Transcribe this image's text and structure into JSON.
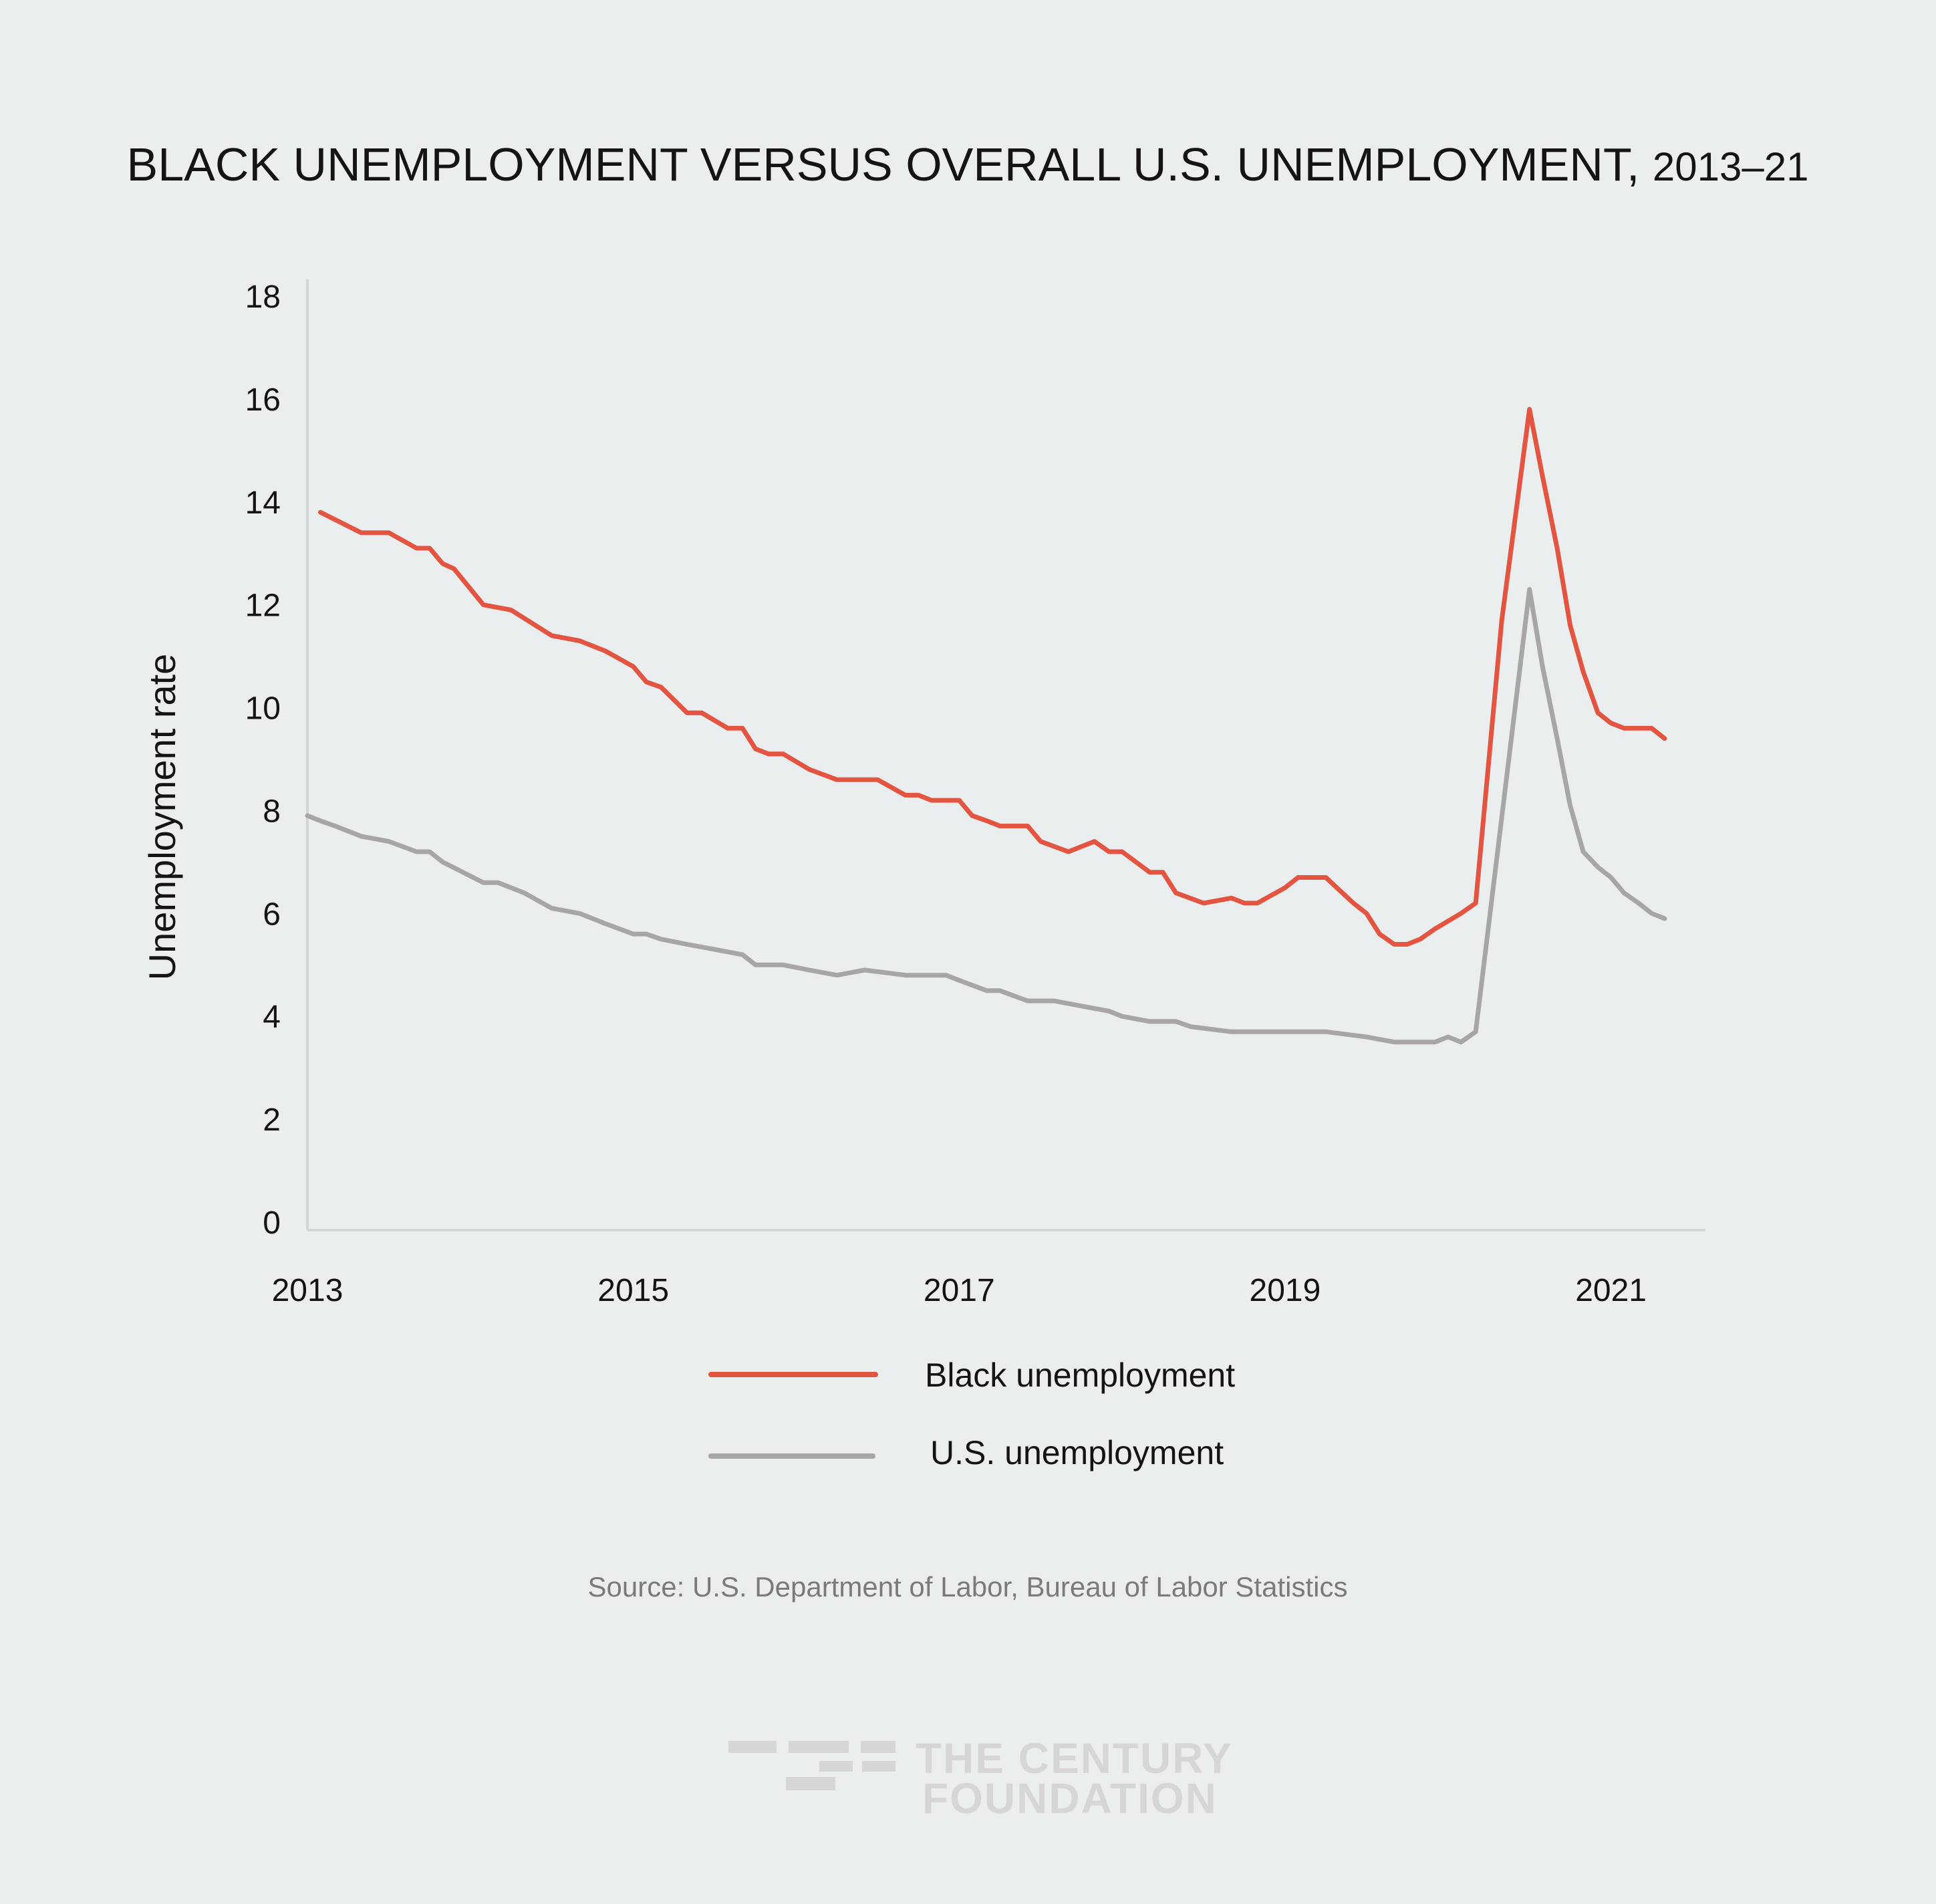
{
  "chart_data": {
    "type": "line",
    "title": "BLACK UNEMPLOYMENT VERSUS OVERALL U.S. UNEMPLOYMENT, ",
    "title_years": "2013–21",
    "xlabel": "",
    "ylabel": "Unemployment rate",
    "xlim": [
      2013.0,
      2021.58
    ],
    "ylim": [
      0,
      18
    ],
    "x_ticks": [
      {
        "value": 2013,
        "label": "2013"
      },
      {
        "value": 2015,
        "label": "2015"
      },
      {
        "value": 2017,
        "label": "2017"
      },
      {
        "value": 2019,
        "label": "2019"
      },
      {
        "value": 2021,
        "label": "2021"
      }
    ],
    "y_ticks": [
      {
        "value": 0,
        "label": "0"
      },
      {
        "value": 2,
        "label": "2"
      },
      {
        "value": 4,
        "label": "4"
      },
      {
        "value": 6,
        "label": "6"
      },
      {
        "value": 8,
        "label": "8"
      },
      {
        "value": 10,
        "label": "10"
      },
      {
        "value": 12,
        "label": "12"
      },
      {
        "value": 14,
        "label": "14"
      },
      {
        "value": 16,
        "label": "16"
      },
      {
        "value": 18,
        "label": "18"
      }
    ],
    "legend_position": "bottom-center",
    "series": [
      {
        "name": "Black unemployment",
        "color": "#e35441",
        "points": [
          [
            2013.08,
            13.8
          ],
          [
            2013.33,
            13.4
          ],
          [
            2013.5,
            13.4
          ],
          [
            2013.67,
            13.1
          ],
          [
            2013.75,
            13.1
          ],
          [
            2013.83,
            12.8
          ],
          [
            2013.9,
            12.7
          ],
          [
            2014.08,
            12.0
          ],
          [
            2014.25,
            11.9
          ],
          [
            2014.5,
            11.4
          ],
          [
            2014.67,
            11.3
          ],
          [
            2014.83,
            11.1
          ],
          [
            2015.0,
            10.8
          ],
          [
            2015.08,
            10.5
          ],
          [
            2015.17,
            10.4
          ],
          [
            2015.33,
            9.9
          ],
          [
            2015.42,
            9.9
          ],
          [
            2015.58,
            9.6
          ],
          [
            2015.67,
            9.6
          ],
          [
            2015.75,
            9.2
          ],
          [
            2015.83,
            9.1
          ],
          [
            2015.92,
            9.1
          ],
          [
            2016.08,
            8.8
          ],
          [
            2016.25,
            8.6
          ],
          [
            2016.33,
            8.6
          ],
          [
            2016.5,
            8.6
          ],
          [
            2016.67,
            8.3
          ],
          [
            2016.75,
            8.3
          ],
          [
            2016.83,
            8.2
          ],
          [
            2016.92,
            8.2
          ],
          [
            2017.0,
            8.2
          ],
          [
            2017.08,
            7.9
          ],
          [
            2017.17,
            7.8
          ],
          [
            2017.25,
            7.7
          ],
          [
            2017.33,
            7.7
          ],
          [
            2017.42,
            7.7
          ],
          [
            2017.5,
            7.4
          ],
          [
            2017.67,
            7.2
          ],
          [
            2017.83,
            7.4
          ],
          [
            2017.92,
            7.2
          ],
          [
            2018.0,
            7.2
          ],
          [
            2018.17,
            6.8
          ],
          [
            2018.25,
            6.8
          ],
          [
            2018.33,
            6.4
          ],
          [
            2018.5,
            6.2
          ],
          [
            2018.67,
            6.3
          ],
          [
            2018.75,
            6.2
          ],
          [
            2018.83,
            6.2
          ],
          [
            2019.0,
            6.5
          ],
          [
            2019.08,
            6.7
          ],
          [
            2019.25,
            6.7
          ],
          [
            2019.42,
            6.2
          ],
          [
            2019.5,
            6.0
          ],
          [
            2019.58,
            5.6
          ],
          [
            2019.67,
            5.4
          ],
          [
            2019.75,
            5.4
          ],
          [
            2019.83,
            5.5
          ],
          [
            2019.92,
            5.7
          ],
          [
            2020.08,
            6.0
          ],
          [
            2020.17,
            6.2
          ],
          [
            2020.33,
            11.7
          ],
          [
            2020.5,
            15.8
          ],
          [
            2020.58,
            14.5
          ],
          [
            2020.67,
            13.1
          ],
          [
            2020.75,
            11.6
          ],
          [
            2020.83,
            10.7
          ],
          [
            2020.92,
            9.9
          ],
          [
            2021.0,
            9.7
          ],
          [
            2021.08,
            9.6
          ],
          [
            2021.25,
            9.6
          ],
          [
            2021.33,
            9.4
          ]
        ]
      },
      {
        "name": "U.S. unemployment",
        "color": "#a6a6a6",
        "points": [
          [
            2013.0,
            7.9
          ],
          [
            2013.08,
            7.8
          ],
          [
            2013.17,
            7.7
          ],
          [
            2013.33,
            7.5
          ],
          [
            2013.5,
            7.4
          ],
          [
            2013.67,
            7.2
          ],
          [
            2013.75,
            7.2
          ],
          [
            2013.83,
            7.0
          ],
          [
            2014.08,
            6.6
          ],
          [
            2014.17,
            6.6
          ],
          [
            2014.25,
            6.5
          ],
          [
            2014.33,
            6.4
          ],
          [
            2014.5,
            6.1
          ],
          [
            2014.67,
            6.0
          ],
          [
            2014.83,
            5.8
          ],
          [
            2015.0,
            5.6
          ],
          [
            2015.08,
            5.6
          ],
          [
            2015.17,
            5.5
          ],
          [
            2015.33,
            5.4
          ],
          [
            2015.5,
            5.3
          ],
          [
            2015.67,
            5.2
          ],
          [
            2015.75,
            5.0
          ],
          [
            2015.92,
            5.0
          ],
          [
            2016.08,
            4.9
          ],
          [
            2016.25,
            4.8
          ],
          [
            2016.42,
            4.9
          ],
          [
            2016.67,
            4.8
          ],
          [
            2016.92,
            4.8
          ],
          [
            2017.0,
            4.7
          ],
          [
            2017.17,
            4.5
          ],
          [
            2017.25,
            4.5
          ],
          [
            2017.42,
            4.3
          ],
          [
            2017.58,
            4.3
          ],
          [
            2017.75,
            4.2
          ],
          [
            2017.92,
            4.1
          ],
          [
            2018.0,
            4.0
          ],
          [
            2018.17,
            3.9
          ],
          [
            2018.33,
            3.9
          ],
          [
            2018.42,
            3.8
          ],
          [
            2018.67,
            3.7
          ],
          [
            2018.75,
            3.7
          ],
          [
            2018.83,
            3.7
          ],
          [
            2019.0,
            3.7
          ],
          [
            2019.25,
            3.7
          ],
          [
            2019.5,
            3.6
          ],
          [
            2019.67,
            3.5
          ],
          [
            2019.92,
            3.5
          ],
          [
            2020.0,
            3.6
          ],
          [
            2020.08,
            3.5
          ],
          [
            2020.17,
            3.7
          ],
          [
            2020.5,
            12.3
          ],
          [
            2020.58,
            10.8
          ],
          [
            2020.67,
            9.4
          ],
          [
            2020.75,
            8.1
          ],
          [
            2020.83,
            7.2
          ],
          [
            2020.92,
            6.9
          ],
          [
            2021.0,
            6.7
          ],
          [
            2021.08,
            6.4
          ],
          [
            2021.17,
            6.2
          ],
          [
            2021.25,
            6.0
          ],
          [
            2021.33,
            5.9
          ]
        ]
      }
    ]
  },
  "source": "Source: U.S. Department of Labor, Bureau of Labor Statistics",
  "logo": {
    "line1": "THE CENTURY",
    "line2": "FOUNDATION",
    "color": "#d6d6d6"
  }
}
